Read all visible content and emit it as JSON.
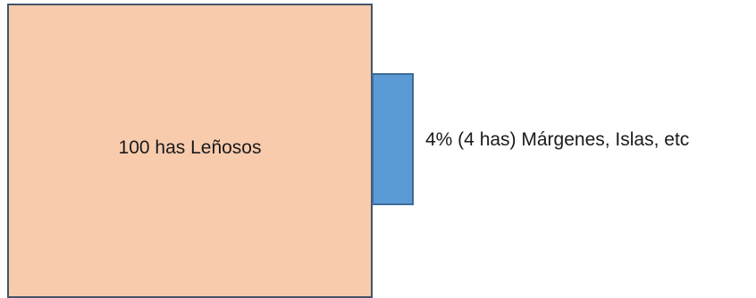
{
  "diagram": {
    "main_block": {
      "label": "100 has Leñosos",
      "fill_color": "#f8cbad",
      "border_color": "#44546a"
    },
    "side_block": {
      "label": "4% (4 has) Márgenes, Islas, etc",
      "fill_color": "#5b9bd5",
      "border_color": "#3d6b99"
    }
  }
}
